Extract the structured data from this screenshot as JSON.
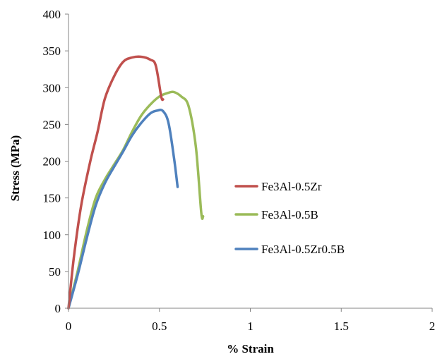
{
  "chart_data": {
    "type": "line",
    "title": "",
    "xlabel": "% Strain",
    "ylabel": "Stress (MPa)",
    "xlim": [
      0,
      2
    ],
    "ylim": [
      0,
      400
    ],
    "xticks": [
      0,
      0.5,
      1,
      1.5,
      2
    ],
    "xtick_labels": [
      "0",
      "0.5",
      "1",
      "1.5",
      "2"
    ],
    "yticks": [
      0,
      50,
      100,
      150,
      200,
      250,
      300,
      350,
      400
    ],
    "ytick_labels": [
      "0",
      "50",
      "100",
      "150",
      "200",
      "250",
      "300",
      "350",
      "400"
    ],
    "grid": false,
    "legend_position": "right",
    "series": [
      {
        "name": "Fe3Al-0.5Zr",
        "color": "#c0504d",
        "points": [
          [
            0.0,
            0
          ],
          [
            0.03,
            70
          ],
          [
            0.07,
            140
          ],
          [
            0.12,
            200
          ],
          [
            0.16,
            240
          ],
          [
            0.2,
            285
          ],
          [
            0.25,
            315
          ],
          [
            0.3,
            335
          ],
          [
            0.35,
            341
          ],
          [
            0.4,
            342
          ],
          [
            0.45,
            338
          ],
          [
            0.48,
            330
          ],
          [
            0.51,
            288
          ],
          [
            0.52,
            284
          ]
        ]
      },
      {
        "name": "Fe3Al-0.5B",
        "color": "#9bbb59",
        "points": [
          [
            0.0,
            0
          ],
          [
            0.05,
            50
          ],
          [
            0.1,
            105
          ],
          [
            0.15,
            150
          ],
          [
            0.2,
            175
          ],
          [
            0.25,
            195
          ],
          [
            0.3,
            215
          ],
          [
            0.35,
            240
          ],
          [
            0.4,
            262
          ],
          [
            0.45,
            277
          ],
          [
            0.5,
            288
          ],
          [
            0.55,
            293
          ],
          [
            0.58,
            294
          ],
          [
            0.62,
            288
          ],
          [
            0.66,
            275
          ],
          [
            0.7,
            220
          ],
          [
            0.73,
            130
          ],
          [
            0.74,
            125
          ]
        ]
      },
      {
        "name": "Fe3Al-0.5Zr0.5B",
        "color": "#4f81bd",
        "points": [
          [
            0.0,
            0
          ],
          [
            0.05,
            45
          ],
          [
            0.1,
            95
          ],
          [
            0.15,
            140
          ],
          [
            0.2,
            170
          ],
          [
            0.25,
            192
          ],
          [
            0.3,
            213
          ],
          [
            0.35,
            235
          ],
          [
            0.4,
            252
          ],
          [
            0.45,
            265
          ],
          [
            0.49,
            269
          ],
          [
            0.52,
            268
          ],
          [
            0.55,
            252
          ],
          [
            0.58,
            205
          ],
          [
            0.6,
            165
          ]
        ]
      }
    ]
  }
}
